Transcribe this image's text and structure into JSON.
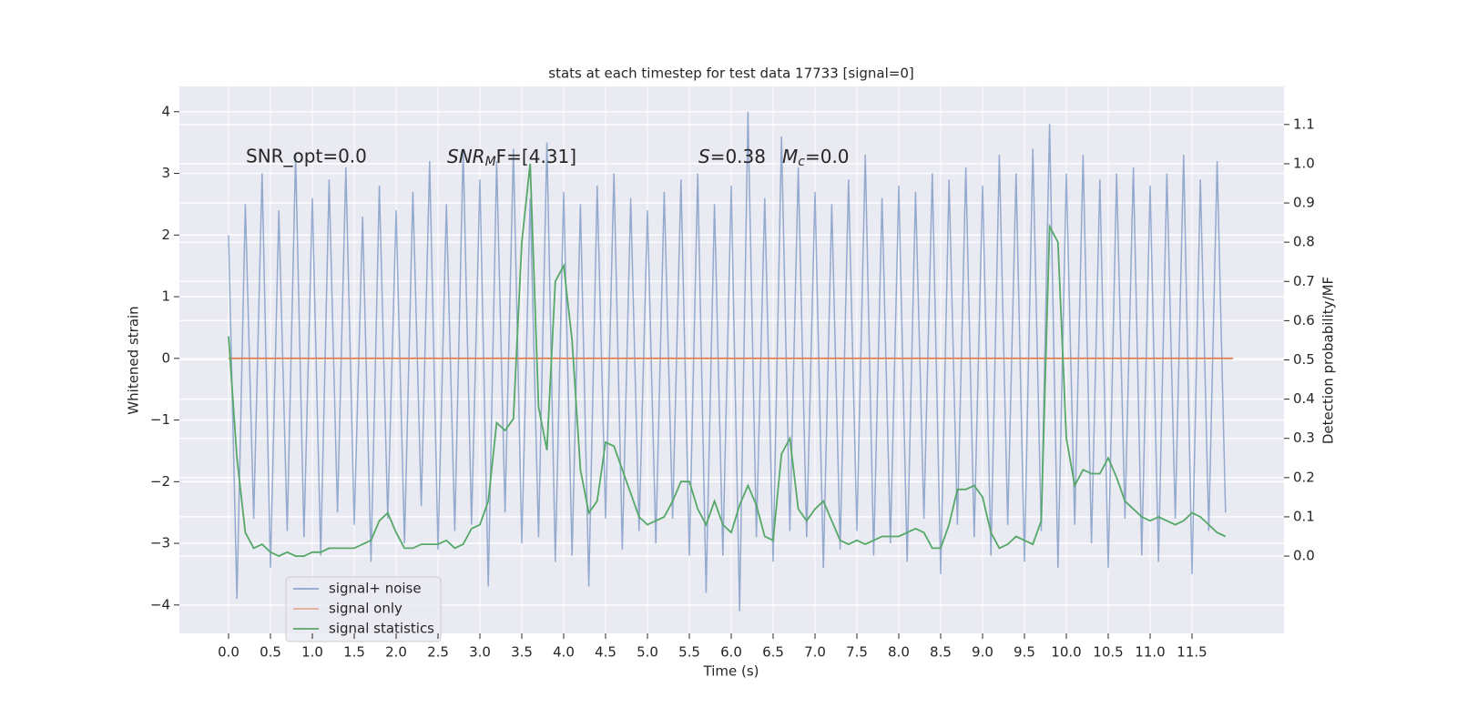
{
  "chart_data": {
    "type": "line",
    "title": "stats at each timestep for test data 17733 [signal=0]",
    "xlabel": "Time (s)",
    "ylabel": "Whitened strain",
    "y2label": "Detection probability/MF",
    "xlim": [
      -0.587,
      12.598
    ],
    "ylim": [
      -4.46,
      4.41
    ],
    "y2lim": [
      -0.197,
      1.197
    ],
    "xticks": [
      {
        "value": 0,
        "label": "0.0"
      },
      {
        "value": 0.5,
        "label": "0.5"
      },
      {
        "value": 1,
        "label": "1.0"
      },
      {
        "value": 1.5,
        "label": "1.5"
      },
      {
        "value": 2,
        "label": "2.0"
      },
      {
        "value": 2.5,
        "label": "2.5"
      },
      {
        "value": 3,
        "label": "3.0"
      },
      {
        "value": 3.5,
        "label": "3.5"
      },
      {
        "value": 4,
        "label": "4.0"
      },
      {
        "value": 4.5,
        "label": "4.5"
      },
      {
        "value": 5,
        "label": "5.0"
      },
      {
        "value": 5.5,
        "label": "5.5"
      },
      {
        "value": 6,
        "label": "6.0"
      },
      {
        "value": 6.5,
        "label": "6.5"
      },
      {
        "value": 7,
        "label": "7.0"
      },
      {
        "value": 7.5,
        "label": "7.5"
      },
      {
        "value": 8,
        "label": "8.0"
      },
      {
        "value": 8.5,
        "label": "8.5"
      },
      {
        "value": 9,
        "label": "9.0"
      },
      {
        "value": 9.5,
        "label": "9.5"
      },
      {
        "value": 10,
        "label": "10.0"
      },
      {
        "value": 10.5,
        "label": "10.5"
      },
      {
        "value": 11,
        "label": "11.0"
      },
      {
        "value": 11.5,
        "label": "11.5"
      }
    ],
    "yticks": [
      {
        "value": -4,
        "label": "−4"
      },
      {
        "value": -3,
        "label": "−3"
      },
      {
        "value": -2,
        "label": "−2"
      },
      {
        "value": -1,
        "label": "−1"
      },
      0,
      1,
      2,
      3,
      4
    ],
    "y2ticks": [
      {
        "value": 0,
        "label": "0.0"
      },
      {
        "value": 0.1,
        "label": "0.1"
      },
      {
        "value": 0.2,
        "label": "0.2"
      },
      {
        "value": 0.3,
        "label": "0.3"
      },
      {
        "value": 0.4,
        "label": "0.4"
      },
      {
        "value": 0.5,
        "label": "0.5"
      },
      {
        "value": 0.6,
        "label": "0.6"
      },
      {
        "value": 0.7,
        "label": "0.7"
      },
      {
        "value": 0.8,
        "label": "0.8"
      },
      {
        "value": 0.9,
        "label": "0.9"
      },
      {
        "value": 1,
        "label": "1.0"
      },
      {
        "value": 1.1,
        "label": "1.1"
      }
    ],
    "grid": true,
    "legend": "lower left",
    "annotations": [
      "SNR_opt=0.0",
      {
        "base": "SNR",
        "sub": "M",
        "tail": "F=[4.31]"
      },
      {
        "base": "S",
        "tail": "=0.38"
      },
      {
        "base": "M",
        "sub": "c",
        "tail": "=0.0"
      }
    ],
    "series": [
      {
        "name": "signal+ noise",
        "color": "#4c72b0",
        "axis": "y",
        "x": [
          0,
          0.1,
          0.2,
          0.3,
          0.4,
          0.5,
          0.6,
          0.7,
          0.8,
          0.9,
          1,
          1.1,
          1.2,
          1.3,
          1.4,
          1.5,
          1.6,
          1.7,
          1.8,
          1.9,
          2,
          2.1,
          2.2,
          2.3,
          2.4,
          2.5,
          2.6,
          2.7,
          2.8,
          2.9,
          3,
          3.1,
          3.2,
          3.3,
          3.4,
          3.5,
          3.6,
          3.7,
          3.8,
          3.9,
          4,
          4.1,
          4.2,
          4.3,
          4.4,
          4.5,
          4.6,
          4.7,
          4.8,
          4.9,
          5,
          5.1,
          5.2,
          5.3,
          5.4,
          5.5,
          5.6,
          5.7,
          5.8,
          5.9,
          6,
          6.1,
          6.2,
          6.3,
          6.4,
          6.5,
          6.6,
          6.7,
          6.8,
          6.9,
          7,
          7.1,
          7.2,
          7.3,
          7.4,
          7.5,
          7.6,
          7.7,
          7.8,
          7.9,
          8,
          8.1,
          8.2,
          8.3,
          8.4,
          8.5,
          8.6,
          8.7,
          8.8,
          8.9,
          9,
          9.1,
          9.2,
          9.3,
          9.4,
          9.5,
          9.6,
          9.7,
          9.8,
          9.9,
          10,
          10.1,
          10.2,
          10.3,
          10.4,
          10.5,
          10.6,
          10.7,
          10.8,
          10.9,
          11,
          11.1,
          11.2,
          11.3,
          11.4,
          11.5,
          11.6,
          11.7,
          11.8,
          11.9
        ],
        "values": [
          2.0,
          -3.9,
          2.5,
          -2.6,
          3.0,
          -3.4,
          2.4,
          -2.8,
          3.3,
          -2.9,
          2.6,
          -3.2,
          2.9,
          -2.5,
          3.1,
          -2.7,
          2.3,
          -3.3,
          2.8,
          -2.6,
          2.4,
          -3.0,
          2.7,
          -2.4,
          3.2,
          -3.1,
          2.5,
          -2.8,
          3.4,
          -2.7,
          2.9,
          -3.7,
          3.2,
          -2.5,
          3.4,
          -3.0,
          2.6,
          -2.9,
          3.5,
          -3.3,
          2.7,
          -3.2,
          2.5,
          -3.7,
          2.8,
          -2.6,
          3.0,
          -3.1,
          2.6,
          -2.8,
          2.4,
          -3.0,
          2.7,
          -2.6,
          2.9,
          -3.2,
          3.0,
          -3.8,
          2.5,
          -3.2,
          2.8,
          -4.1,
          4.0,
          -2.9,
          2.6,
          -3.3,
          3.6,
          -2.8,
          3.1,
          -2.9,
          2.7,
          -3.4,
          2.5,
          -3.1,
          2.9,
          -2.8,
          3.3,
          -3.2,
          2.6,
          -3.0,
          2.8,
          -3.3,
          2.7,
          -2.6,
          3.0,
          -3.5,
          2.9,
          -2.7,
          3.1,
          -2.9,
          2.8,
          -3.2,
          3.3,
          -2.7,
          3.0,
          -3.3,
          3.4,
          -2.8,
          3.8,
          -3.4,
          3.0,
          -2.7,
          3.3,
          -3.0,
          2.9,
          -3.4,
          3.0,
          -2.6,
          3.1,
          -3.2,
          2.8,
          -3.3,
          3.0,
          -2.6,
          3.3,
          -3.5,
          2.9,
          -2.8,
          3.2,
          -2.5
        ]
      },
      {
        "name": "signal only",
        "color": "#dd8452",
        "axis": "y",
        "x": [
          0,
          11.99
        ],
        "values": [
          0,
          0
        ]
      },
      {
        "name": "signal statistics",
        "color": "#55a868",
        "axis": "y2",
        "x": [
          0,
          0.1,
          0.2,
          0.3,
          0.4,
          0.5,
          0.6,
          0.7,
          0.8,
          0.9,
          1,
          1.1,
          1.2,
          1.3,
          1.4,
          1.5,
          1.6,
          1.7,
          1.8,
          1.9,
          2,
          2.1,
          2.2,
          2.3,
          2.4,
          2.5,
          2.6,
          2.7,
          2.8,
          2.9,
          3,
          3.1,
          3.2,
          3.3,
          3.4,
          3.5,
          3.6,
          3.7,
          3.8,
          3.9,
          4,
          4.1,
          4.2,
          4.3,
          4.4,
          4.5,
          4.6,
          4.7,
          4.8,
          4.9,
          5,
          5.1,
          5.2,
          5.3,
          5.4,
          5.5,
          5.6,
          5.7,
          5.8,
          5.9,
          6,
          6.1,
          6.2,
          6.3,
          6.4,
          6.5,
          6.6,
          6.7,
          6.8,
          6.9,
          7,
          7.1,
          7.2,
          7.3,
          7.4,
          7.5,
          7.6,
          7.7,
          7.8,
          7.9,
          8,
          8.1,
          8.2,
          8.3,
          8.4,
          8.5,
          8.6,
          8.7,
          8.8,
          8.9,
          9,
          9.1,
          9.2,
          9.3,
          9.4,
          9.5,
          9.6,
          9.7,
          9.8,
          9.9,
          10,
          10.1,
          10.2,
          10.3,
          10.4,
          10.5,
          10.6,
          10.7,
          10.8,
          10.9,
          11,
          11.1,
          11.2,
          11.3,
          11.4,
          11.5,
          11.6,
          11.7,
          11.8,
          11.9
        ],
        "values": [
          0.56,
          0.25,
          0.06,
          0.02,
          0.03,
          0.01,
          0.0,
          0.01,
          0.0,
          0.0,
          0.01,
          0.01,
          0.02,
          0.02,
          0.02,
          0.02,
          0.03,
          0.04,
          0.09,
          0.11,
          0.06,
          0.02,
          0.02,
          0.03,
          0.03,
          0.03,
          0.04,
          0.02,
          0.03,
          0.07,
          0.08,
          0.14,
          0.34,
          0.32,
          0.35,
          0.8,
          1.0,
          0.38,
          0.27,
          0.7,
          0.74,
          0.55,
          0.22,
          0.11,
          0.14,
          0.29,
          0.28,
          0.22,
          0.16,
          0.1,
          0.08,
          0.09,
          0.1,
          0.14,
          0.19,
          0.19,
          0.12,
          0.08,
          0.14,
          0.08,
          0.06,
          0.13,
          0.18,
          0.13,
          0.05,
          0.04,
          0.26,
          0.3,
          0.12,
          0.09,
          0.12,
          0.14,
          0.09,
          0.04,
          0.03,
          0.04,
          0.03,
          0.04,
          0.05,
          0.05,
          0.05,
          0.06,
          0.07,
          0.06,
          0.02,
          0.02,
          0.08,
          0.17,
          0.17,
          0.18,
          0.15,
          0.06,
          0.02,
          0.03,
          0.05,
          0.04,
          0.03,
          0.09,
          0.84,
          0.8,
          0.3,
          0.18,
          0.22,
          0.21,
          0.21,
          0.25,
          0.2,
          0.14,
          0.12,
          0.1,
          0.09,
          0.1,
          0.09,
          0.08,
          0.09,
          0.11,
          0.1,
          0.08,
          0.06,
          0.05
        ]
      }
    ]
  }
}
